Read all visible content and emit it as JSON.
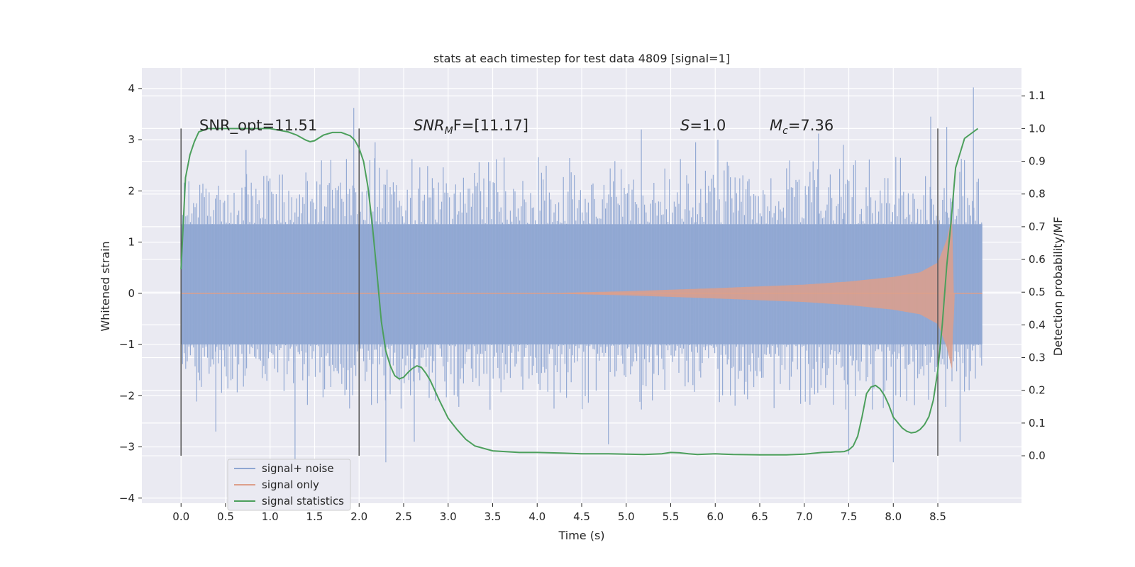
{
  "chart_data": {
    "type": "line",
    "title": "stats at each timestep for test data 4809 [signal=1]",
    "xlabel": "Time (s)",
    "ylabel": "Whitened strain",
    "y2label": "Detection probability/MF",
    "xlim": [
      -0.44,
      9.44
    ],
    "ylim": [
      -4.1,
      4.4
    ],
    "y2lim": [
      -0.145,
      1.185
    ],
    "x_ticks": [
      0.0,
      0.5,
      1.0,
      1.5,
      2.0,
      2.5,
      3.0,
      3.5,
      4.0,
      4.5,
      5.0,
      5.5,
      6.0,
      6.5,
      7.0,
      7.5,
      8.0,
      8.5
    ],
    "x_tick_labels": [
      "0.0",
      "0.5",
      "1.0",
      "1.5",
      "2.0",
      "2.5",
      "3.0",
      "3.5",
      "4.0",
      "4.5",
      "5.0",
      "5.5",
      "6.0",
      "6.5",
      "7.0",
      "7.5",
      "8.0",
      "8.5"
    ],
    "y_ticks": [
      -4,
      -3,
      -2,
      -1,
      0,
      1,
      2,
      3,
      4
    ],
    "y_tick_labels": [
      "−4",
      "−3",
      "−2",
      "−1",
      "0",
      "1",
      "2",
      "3",
      "4"
    ],
    "y2_ticks": [
      0.0,
      0.1,
      0.2,
      0.3,
      0.4,
      0.5,
      0.6,
      0.7,
      0.8,
      0.9,
      1.0,
      1.1
    ],
    "y2_tick_labels": [
      "0.0",
      "0.1",
      "0.2",
      "0.3",
      "0.4",
      "0.5",
      "0.6",
      "0.7",
      "0.8",
      "0.9",
      "1.0",
      "1.1"
    ],
    "grid": true,
    "legend_position": "lower-left",
    "annotations": {
      "snr_opt": "SNR_opt=11.51",
      "snr_mf_main": "SNR",
      "snr_mf_sub": "M",
      "snr_mf_rest": "F=[11.17]",
      "s_main": "S",
      "s_rest": "=1.0",
      "mc_main": "M",
      "mc_sub": "c",
      "mc_rest": "=7.36"
    },
    "vertical_markers": [
      0.0,
      2.0,
      8.5
    ],
    "series": [
      {
        "name": "signal+ noise",
        "color": "#8fa6d2",
        "description_values": {
          "time_range": [
            0.0,
            9.0
          ],
          "core_band": [
            -1.0,
            1.35
          ],
          "typical_peak_range": [
            -2.5,
            2.9
          ]
        },
        "peaks": [
          [
            1.94,
            3.62
          ],
          [
            0.73,
            2.8
          ],
          [
            1.28,
            -3.3
          ],
          [
            2.3,
            -3.3
          ],
          [
            2.18,
            2.95
          ],
          [
            4.8,
            -2.95
          ],
          [
            5.17,
            3.2
          ],
          [
            5.78,
            2.95
          ],
          [
            6.03,
            3.0
          ],
          [
            7.16,
            3.12
          ],
          [
            7.44,
            2.9
          ],
          [
            7.5,
            -3.15
          ],
          [
            8.0,
            -3.3
          ],
          [
            8.42,
            3.45
          ],
          [
            8.6,
            3.25
          ],
          [
            8.9,
            4.02
          ],
          [
            8.75,
            -2.9
          ],
          [
            2.62,
            -2.9
          ],
          [
            0.39,
            -2.7
          ]
        ]
      },
      {
        "name": "signal only",
        "color": "#dd9f8b",
        "envelope_t": [
          0.0,
          4.0,
          5.0,
          6.0,
          7.0,
          7.5,
          8.0,
          8.3,
          8.5,
          8.6,
          8.66,
          8.68,
          9.0
        ],
        "envelope_amp": [
          0.0,
          0.0,
          0.04,
          0.1,
          0.17,
          0.23,
          0.32,
          0.41,
          0.6,
          1.05,
          1.5,
          0.0,
          0.0
        ],
        "negative_peak": -1.2
      },
      {
        "name": "signal statistics",
        "color": "#4c9f5c",
        "axis": "right",
        "x": [
          0.0,
          0.05,
          0.1,
          0.15,
          0.2,
          0.3,
          0.5,
          0.8,
          1.0,
          1.2,
          1.3,
          1.4,
          1.45,
          1.5,
          1.6,
          1.7,
          1.8,
          1.9,
          1.95,
          2.0,
          2.05,
          2.1,
          2.15,
          2.2,
          2.25,
          2.3,
          2.35,
          2.4,
          2.45,
          2.5,
          2.55,
          2.6,
          2.65,
          2.7,
          2.75,
          2.8,
          2.9,
          3.0,
          3.1,
          3.2,
          3.3,
          3.5,
          3.8,
          4.0,
          4.3,
          4.5,
          4.8,
          5.0,
          5.2,
          5.4,
          5.5,
          5.6,
          5.7,
          5.8,
          6.0,
          6.2,
          6.5,
          6.8,
          7.0,
          7.2,
          7.3,
          7.35,
          7.4,
          7.45,
          7.5,
          7.55,
          7.6,
          7.65,
          7.7,
          7.75,
          7.8,
          7.85,
          7.9,
          7.95,
          8.0,
          8.1,
          8.15,
          8.2,
          8.25,
          8.3,
          8.35,
          8.4,
          8.45,
          8.5,
          8.55,
          8.6,
          8.65,
          8.7,
          8.8,
          8.9,
          8.95
        ],
        "y": [
          0.57,
          0.85,
          0.92,
          0.96,
          0.99,
          1.0,
          1.0,
          1.0,
          1.0,
          0.99,
          0.98,
          0.965,
          0.96,
          0.963,
          0.98,
          0.988,
          0.988,
          0.978,
          0.965,
          0.94,
          0.9,
          0.82,
          0.7,
          0.56,
          0.41,
          0.32,
          0.275,
          0.245,
          0.235,
          0.24,
          0.255,
          0.267,
          0.275,
          0.27,
          0.252,
          0.23,
          0.17,
          0.115,
          0.08,
          0.05,
          0.03,
          0.015,
          0.01,
          0.01,
          0.008,
          0.006,
          0.006,
          0.005,
          0.004,
          0.006,
          0.01,
          0.009,
          0.006,
          0.004,
          0.006,
          0.004,
          0.003,
          0.003,
          0.005,
          0.01,
          0.011,
          0.012,
          0.012,
          0.013,
          0.018,
          0.03,
          0.06,
          0.12,
          0.19,
          0.21,
          0.215,
          0.205,
          0.185,
          0.155,
          0.118,
          0.085,
          0.075,
          0.07,
          0.072,
          0.08,
          0.095,
          0.12,
          0.17,
          0.26,
          0.4,
          0.58,
          0.72,
          0.88,
          0.97,
          0.99,
          1.0
        ]
      }
    ]
  }
}
